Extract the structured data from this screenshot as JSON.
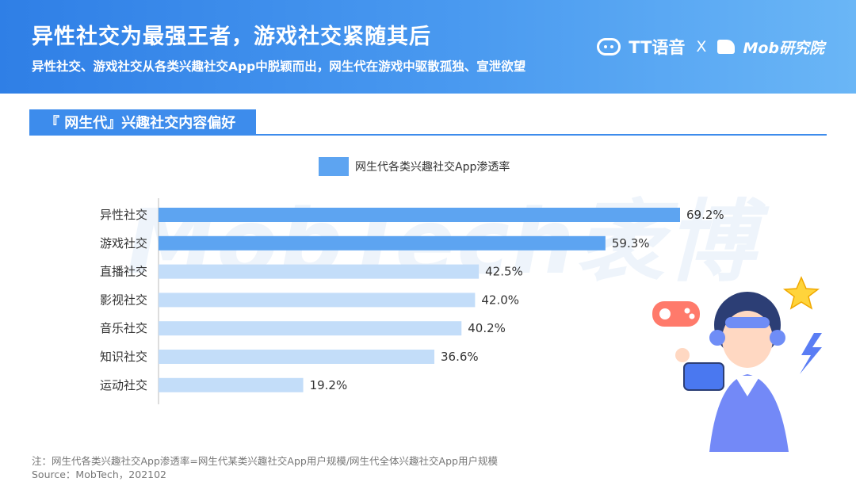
{
  "header": {
    "title": "异性社交为最强王者，游戏社交紧随其后",
    "subtitle": "异性社交、游戏社交从各类兴趣社交App中脱颖而出，网生代在游戏中驱散孤独、宣泄欲望",
    "brand_tt": "TT语音",
    "brand_x": "X",
    "brand_mob": "Mob研究院"
  },
  "section_title": "『 网生代』兴趣社交内容偏好",
  "watermark": "MobTech袤博",
  "chart_data": {
    "type": "bar",
    "orientation": "horizontal",
    "categories": [
      "异性社交",
      "游戏社交",
      "直播社交",
      "影视社交",
      "音乐社交",
      "知识社交",
      "运动社交"
    ],
    "series": [
      {
        "name": "网生代各类兴趣社交App渗透率",
        "values": [
          69.2,
          59.3,
          42.5,
          42.0,
          40.2,
          36.6,
          19.2
        ]
      }
    ],
    "value_labels": [
      "69.2%",
      "59.3%",
      "42.5%",
      "42.0%",
      "40.2%",
      "36.6%",
      "19.2%"
    ],
    "unit": "%",
    "xlim": [
      0,
      69.2
    ],
    "legend_position": "top",
    "grid": false,
    "colors": {
      "highlight": "#5da4f1",
      "normal": "#c3ddf9",
      "highlight_count": 2
    }
  },
  "footnote": {
    "note": "注：网生代各类兴趣社交App渗透率=网生代某类兴趣社交App用户规模/网生代全体兴趣社交App用户规模",
    "source": "Source：MobTech，202102"
  }
}
